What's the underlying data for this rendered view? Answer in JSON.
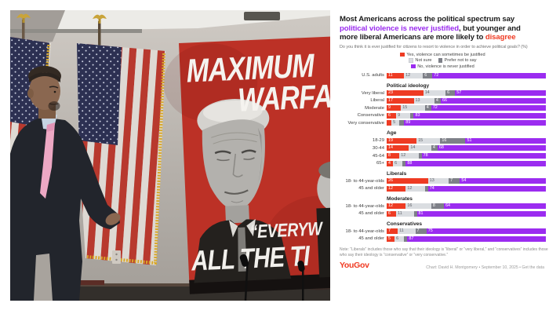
{
  "photo": {
    "description": "press conference photo: speaker gesturing beside US flags and a red MAXIMUM WARFARE poster with black-and-white Trump image",
    "poster": {
      "top_line1": "MAXIMUM",
      "top_line2": "WARFA",
      "bottom_line1": "“EVERYW",
      "bottom_line2": "ALL THE TI"
    }
  },
  "chart": {
    "title_lines": [
      [
        {
          "t": "Most Americans across the political spectrum say",
          "c": "dark"
        }
      ],
      [
        {
          "t": "political violence is never justified",
          "c": "purple"
        },
        {
          "t": ", but younger and",
          "c": "dark"
        }
      ],
      [
        {
          "t": "more liberal Americans are more likely to ",
          "c": "dark"
        },
        {
          "t": "disagree",
          "c": "red"
        }
      ]
    ],
    "subtitle": "Do you think it is ever justified for citizens to resort to violence in order to achieve political goals? (%)",
    "legend_rows": [
      [
        {
          "key": "yes",
          "label": "Yes, violence can sometimes be justified"
        }
      ],
      [
        {
          "key": "not_sure",
          "label": "Not sure"
        },
        {
          "key": "prefer_not",
          "label": "Prefer not to say"
        }
      ],
      [
        {
          "key": "never",
          "label": "No, violence is never justified"
        }
      ]
    ],
    "note_line1": "Note: “Liberals” includes those who say that their ideology is “liberal” or “very liberal,” and “conservatives” includes those",
    "note_line2": "who say their ideology is “conservative” or “very conservative.”",
    "brand": "YouGov",
    "credit": "Chart: David H. Montgomery • September 10, 2025 • Get the data"
  },
  "chart_data": {
    "type": "bar",
    "stacked": true,
    "orientation": "horizontal",
    "unit": "%",
    "series_names": [
      "Yes, violence can sometimes be justified",
      "Not sure",
      "Prefer not to say",
      "No, violence is never justified"
    ],
    "colors": {
      "yes": "#ee3b23",
      "not_sure": "#dadde1",
      "prefer_not": "#7e8088",
      "never": "#9b2cf0"
    },
    "value_text_colors": [
      "#ffffff",
      "#5a5d63",
      "#ffffff",
      "#ffffff"
    ],
    "min_label_value": 4,
    "groups": [
      {
        "header": "",
        "rows": [
          {
            "label": "U.S. adults",
            "values": [
              11,
              12,
              6,
              72
            ]
          }
        ]
      },
      {
        "header": "Political ideology",
        "rows": [
          {
            "label": "Very liberal",
            "values": [
              23,
              14,
              6,
              57
            ]
          },
          {
            "label": "Liberal",
            "values": [
              17,
              13,
              4,
              66
            ]
          },
          {
            "label": "Moderate",
            "values": [
              9,
              15,
              4,
              72
            ]
          },
          {
            "label": "Conservative",
            "values": [
              6,
              9,
              2,
              83
            ]
          },
          {
            "label": "Very conservative",
            "values": [
              3,
              5,
              3,
              89
            ]
          }
        ]
      },
      {
        "header": "Age",
        "rows": [
          {
            "label": "18-29",
            "values": [
              19,
              15,
              16,
              51
            ]
          },
          {
            "label": "30-44",
            "values": [
              14,
              14,
              4,
              68
            ]
          },
          {
            "label": "45-64",
            "values": [
              8,
              12,
              2,
              78
            ]
          },
          {
            "label": "65+",
            "values": [
              4,
              6,
              2,
              88
            ]
          }
        ]
      },
      {
        "header": "Liberals",
        "rows": [
          {
            "label": "18- to 44-year-olds",
            "values": [
              26,
              13,
              7,
              54
            ]
          },
          {
            "label": "45 and older",
            "values": [
              12,
              12,
              2,
              74
            ]
          }
        ]
      },
      {
        "header": "Moderates",
        "rows": [
          {
            "label": "18- to 44-year-olds",
            "values": [
              12,
              16,
              8,
              64
            ]
          },
          {
            "label": "45 and older",
            "values": [
              6,
              11,
              2,
              81
            ]
          }
        ]
      },
      {
        "header": "Conservatives",
        "rows": [
          {
            "label": "18- to 44-year-olds",
            "values": [
              7,
              11,
              7,
              75
            ]
          },
          {
            "label": "45 and older",
            "values": [
              5,
              6,
              2,
              87
            ]
          }
        ]
      }
    ]
  }
}
